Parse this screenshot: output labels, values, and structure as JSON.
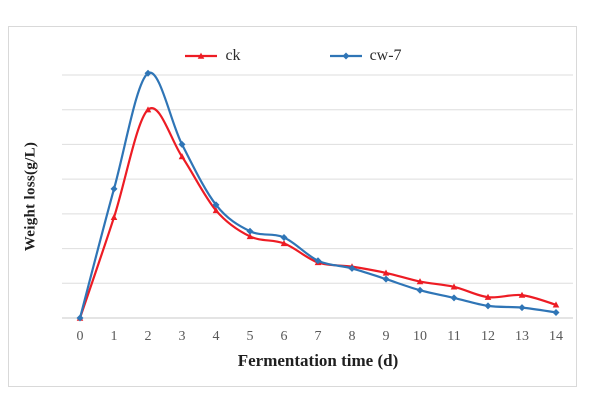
{
  "chart_data": {
    "type": "line",
    "title": "",
    "xlabel": "Fermentation time (d)",
    "ylabel": "Weight loss(g/L)",
    "x": [
      0,
      1,
      2,
      3,
      4,
      5,
      6,
      7,
      8,
      9,
      10,
      11,
      12,
      13,
      14
    ],
    "series": [
      {
        "name": "ck",
        "color": "#ed1c24",
        "marker": "triangle",
        "values": [
          0,
          2.9,
          6.0,
          4.65,
          3.1,
          2.35,
          2.15,
          1.6,
          1.48,
          1.3,
          1.05,
          0.9,
          0.6,
          0.66,
          0.38
        ]
      },
      {
        "name": "cw-7",
        "color": "#2f75b6",
        "marker": "diamond",
        "values": [
          0,
          3.72,
          7.05,
          5.0,
          3.26,
          2.5,
          2.32,
          1.65,
          1.43,
          1.12,
          0.8,
          0.58,
          0.35,
          0.3,
          0.16
        ]
      }
    ],
    "ylim": [
      0,
      7
    ],
    "y_gridline_step": 1,
    "y_tick_labels_visible": false,
    "grid": true,
    "legend_position": "top-center",
    "line_style": "smooth"
  },
  "colors": {
    "grid_line": "#dedede",
    "axis_line": "#c8c8c8",
    "frame_border": "#d9d9d9",
    "tick_text": "#595959",
    "title_text": "#1f1f1f",
    "background": "#ffffff"
  }
}
